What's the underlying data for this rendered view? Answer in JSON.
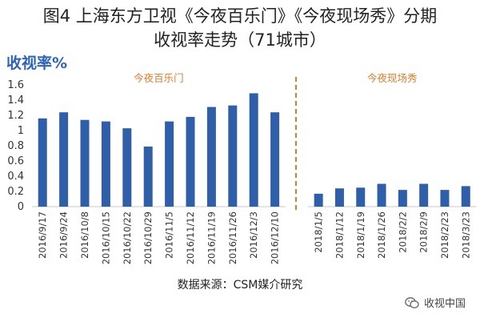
{
  "title_line1": "图4 上海东方卫视《今夜百乐门》《今夜现场秀》分期",
  "title_line2": "收视率走势（71城市）",
  "source": "数据来源：CSM媒介研究",
  "watermark": {
    "text": "收视中国",
    "icon": "wechat-icon"
  },
  "chart_data": {
    "type": "bar",
    "ylabel": "收视率%",
    "ylim": [
      0,
      1.6
    ],
    "yticks": [
      "0",
      "0.2",
      "0.4",
      "0.6",
      "0.8",
      "1",
      "1.2",
      "1.4",
      "1.6"
    ],
    "bar_color": "#2f5fa8",
    "divider_color": "#e07b2b",
    "grid": false,
    "groups": [
      {
        "name": "今夜百乐门",
        "categories": [
          "2016/9/17",
          "2016/9/24",
          "2016/10/8",
          "2016/10/15",
          "2016/10/22",
          "2016/10/29",
          "2016/11/5",
          "2016/11/12",
          "2016/11/19",
          "2016/11/26",
          "2016/12/3",
          "2016/12/10"
        ],
        "values": [
          1.16,
          1.24,
          1.14,
          1.12,
          1.03,
          0.79,
          1.12,
          1.18,
          1.31,
          1.33,
          1.49,
          1.24
        ]
      },
      {
        "name": "今夜现场秀",
        "categories": [
          "2018/1/5",
          "2018/1/12",
          "2018/1/19",
          "2018/1/26",
          "2018/2/2",
          "2018/2/9",
          "2018/2/23",
          "2018/3/23"
        ],
        "values": [
          0.17,
          0.24,
          0.25,
          0.3,
          0.22,
          0.3,
          0.22,
          0.27
        ]
      }
    ]
  }
}
